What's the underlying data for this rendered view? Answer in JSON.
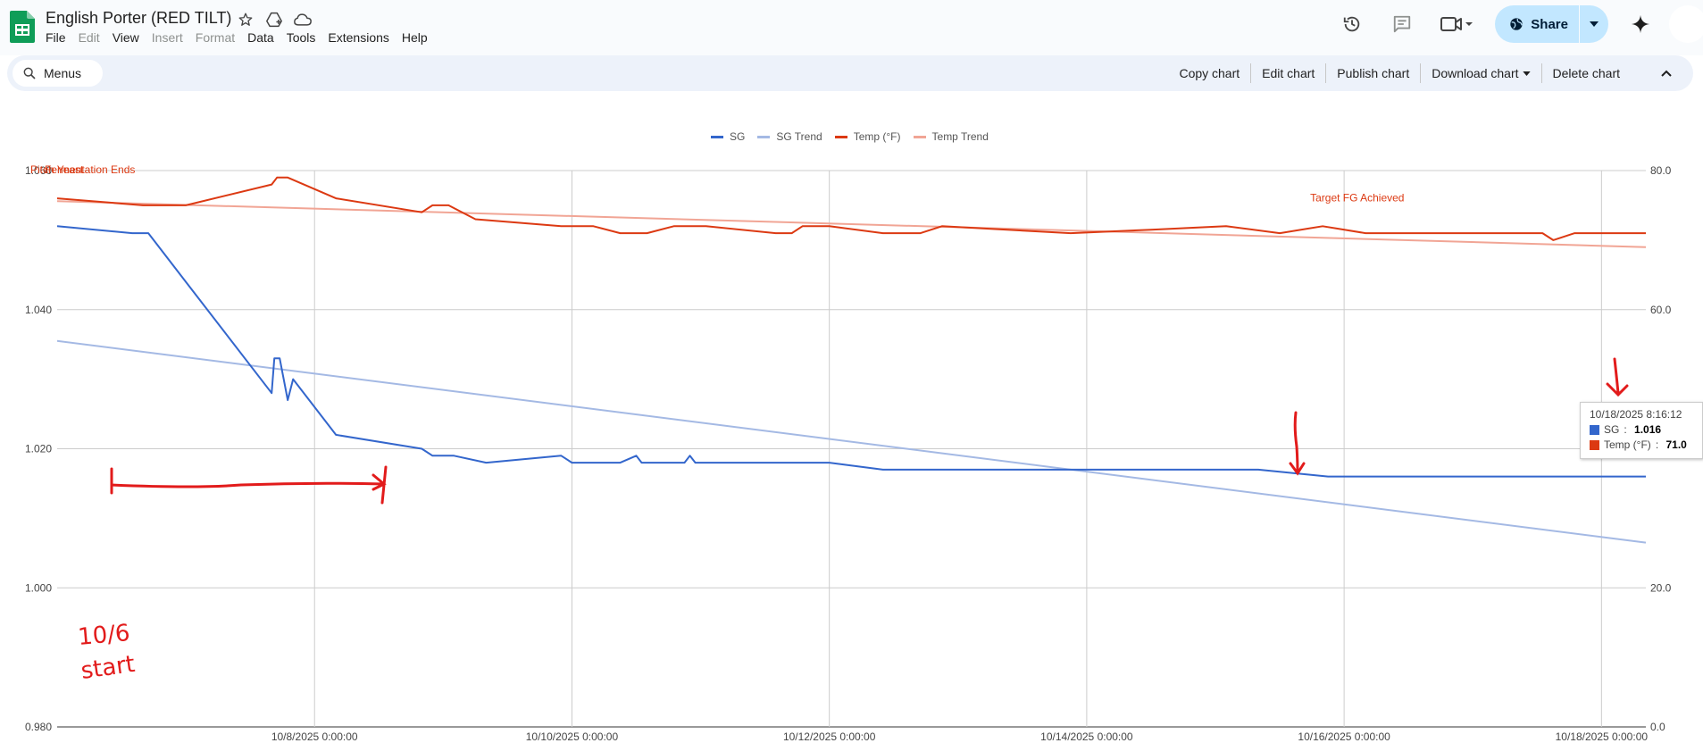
{
  "app": {
    "title": "English Porter (RED TILT)",
    "menu": [
      {
        "label": "File",
        "disabled": false
      },
      {
        "label": "Edit",
        "disabled": true
      },
      {
        "label": "View",
        "disabled": false
      },
      {
        "label": "Insert",
        "disabled": true
      },
      {
        "label": "Format",
        "disabled": true
      },
      {
        "label": "Data",
        "disabled": false
      },
      {
        "label": "Tools",
        "disabled": false
      },
      {
        "label": "Extensions",
        "disabled": false
      },
      {
        "label": "Help",
        "disabled": false
      }
    ],
    "share_label": "Share",
    "brand_color": "#0f9d58"
  },
  "toolbar": {
    "search_label": "Menus",
    "actions": [
      "Copy chart",
      "Edit chart",
      "Publish chart",
      "Download chart",
      "Delete chart"
    ]
  },
  "chart_data": {
    "type": "line",
    "title": "",
    "legend_position": "top",
    "x_range": [
      "10/6/2025 0:00:00",
      "10/18/2025 8:16:12"
    ],
    "x_ticks": [
      "10/8/2025 0:00:00",
      "10/10/2025 0:00:00",
      "10/12/2025 0:00:00",
      "10/14/2025 0:00:00",
      "10/16/2025 0:00:00",
      "10/18/2025 0:00:00"
    ],
    "y_left": {
      "min": 0.98,
      "max": 1.06,
      "ticks": [
        "0.980",
        "1.000",
        "1.020",
        "1.040",
        "1.060"
      ]
    },
    "y_right": {
      "min": 0.0,
      "max": 80.0,
      "ticks": [
        "0.0",
        "20.0",
        "40.0",
        "60.0",
        "80.0"
      ]
    },
    "grid": true,
    "series": [
      {
        "name": "SG",
        "color": "#3366cc",
        "axis": "left",
        "points": [
          [
            "10/6/2025 0:00",
            1.052
          ],
          [
            "10/6/2025 14:00",
            1.051
          ],
          [
            "10/6/2025 17:00",
            1.051
          ],
          [
            "10/6/2025 18:00",
            1.05
          ],
          [
            "10/7/2025 0:00",
            1.044
          ],
          [
            "10/7/2025 16:00",
            1.028
          ],
          [
            "10/7/2025 16:30",
            1.033
          ],
          [
            "10/7/2025 17:30",
            1.033
          ],
          [
            "10/7/2025 19:00",
            1.027
          ],
          [
            "10/7/2025 20:00",
            1.03
          ],
          [
            "10/8/2025 4:00",
            1.022
          ],
          [
            "10/8/2025 20:00",
            1.02
          ],
          [
            "10/8/2025 22:00",
            1.019
          ],
          [
            "10/9/2025 2:00",
            1.019
          ],
          [
            "10/9/2025 8:00",
            1.018
          ],
          [
            "10/9/2025 22:00",
            1.019
          ],
          [
            "10/10/2025 0:00",
            1.018
          ],
          [
            "10/10/2025 9:00",
            1.018
          ],
          [
            "10/10/2025 12:00",
            1.019
          ],
          [
            "10/10/2025 13:00",
            1.018
          ],
          [
            "10/10/2025 21:00",
            1.018
          ],
          [
            "10/10/2025 22:00",
            1.019
          ],
          [
            "10/10/2025 23:00",
            1.018
          ],
          [
            "10/12/2025 0:00",
            1.018
          ],
          [
            "10/12/2025 10:00",
            1.017
          ],
          [
            "10/13/2025 20:00",
            1.017
          ],
          [
            "10/15/2025 8:00",
            1.017
          ],
          [
            "10/15/2025 21:00",
            1.016
          ],
          [
            "10/18/2025 8:16",
            1.016
          ]
        ]
      },
      {
        "name": "SG Trend",
        "color": "#a4b9e4",
        "axis": "left",
        "points": [
          [
            "10/6/2025 0:00",
            1.0355
          ],
          [
            "10/18/2025 8:16",
            1.0065
          ]
        ]
      },
      {
        "name": "Temp (°F)",
        "color": "#dc3912",
        "axis": "right",
        "points": [
          [
            "10/6/2025 0:00",
            76.0
          ],
          [
            "10/6/2025 16:00",
            75.0
          ],
          [
            "10/7/2025 0:00",
            75.0
          ],
          [
            "10/7/2025 16:00",
            78.0
          ],
          [
            "10/7/2025 17:00",
            79.0
          ],
          [
            "10/7/2025 19:00",
            79.0
          ],
          [
            "10/8/2025 4:00",
            76.0
          ],
          [
            "10/8/2025 20:00",
            74.0
          ],
          [
            "10/8/2025 22:00",
            75.0
          ],
          [
            "10/9/2025 1:00",
            75.0
          ],
          [
            "10/9/2025 6:00",
            73.0
          ],
          [
            "10/9/2025 22:00",
            72.0
          ],
          [
            "10/10/2025 4:00",
            72.0
          ],
          [
            "10/10/2025 9:00",
            71.0
          ],
          [
            "10/10/2025 14:00",
            71.0
          ],
          [
            "10/10/2025 19:00",
            72.0
          ],
          [
            "10/11/2025 1:00",
            72.0
          ],
          [
            "10/11/2025 14:00",
            71.0
          ],
          [
            "10/11/2025 17:00",
            71.0
          ],
          [
            "10/11/2025 19:00",
            72.0
          ],
          [
            "10/12/2025 0:00",
            72.0
          ],
          [
            "10/12/2025 10:00",
            71.0
          ],
          [
            "10/12/2025 17:00",
            71.0
          ],
          [
            "10/12/2025 21:00",
            72.0
          ],
          [
            "10/13/2025 21:00",
            71.0
          ],
          [
            "10/14/2025 12:00",
            71.5
          ],
          [
            "10/15/2025 2:00",
            72.0
          ],
          [
            "10/15/2025 12:00",
            71.0
          ],
          [
            "10/15/2025 20:00",
            72.0
          ],
          [
            "10/16/2025 4:00",
            71.0
          ],
          [
            "10/17/2025 13:00",
            71.0
          ],
          [
            "10/17/2025 15:00",
            70.0
          ],
          [
            "10/17/2025 19:00",
            71.0
          ],
          [
            "10/18/2025 8:16",
            71.0
          ]
        ]
      },
      {
        "name": "Temp Trend",
        "color": "#f1a595",
        "axis": "right",
        "points": [
          [
            "10/6/2025 0:00",
            75.6
          ],
          [
            "10/18/2025 8:16",
            69.0
          ]
        ]
      }
    ],
    "annotations": [
      {
        "text": "Pitch Yeast",
        "series": "Temp (°F)",
        "at": "10/6/2025 0:00"
      },
      {
        "text": "Fermentation Ends",
        "series": "Temp (°F)",
        "at": "10/8/2025 19:00"
      },
      {
        "text": "Target FG Achieved",
        "series": "Temp (°F)",
        "at": "10/15/2025 20:00"
      }
    ],
    "handwritten_note": "10/6 start",
    "tooltip": {
      "title": "10/18/2025 8:16:12",
      "rows": [
        {
          "label": "SG",
          "value": "1.016",
          "color": "#3366cc"
        },
        {
          "label": "Temp (°F)",
          "value": "71.0",
          "color": "#dc3912"
        }
      ]
    }
  }
}
